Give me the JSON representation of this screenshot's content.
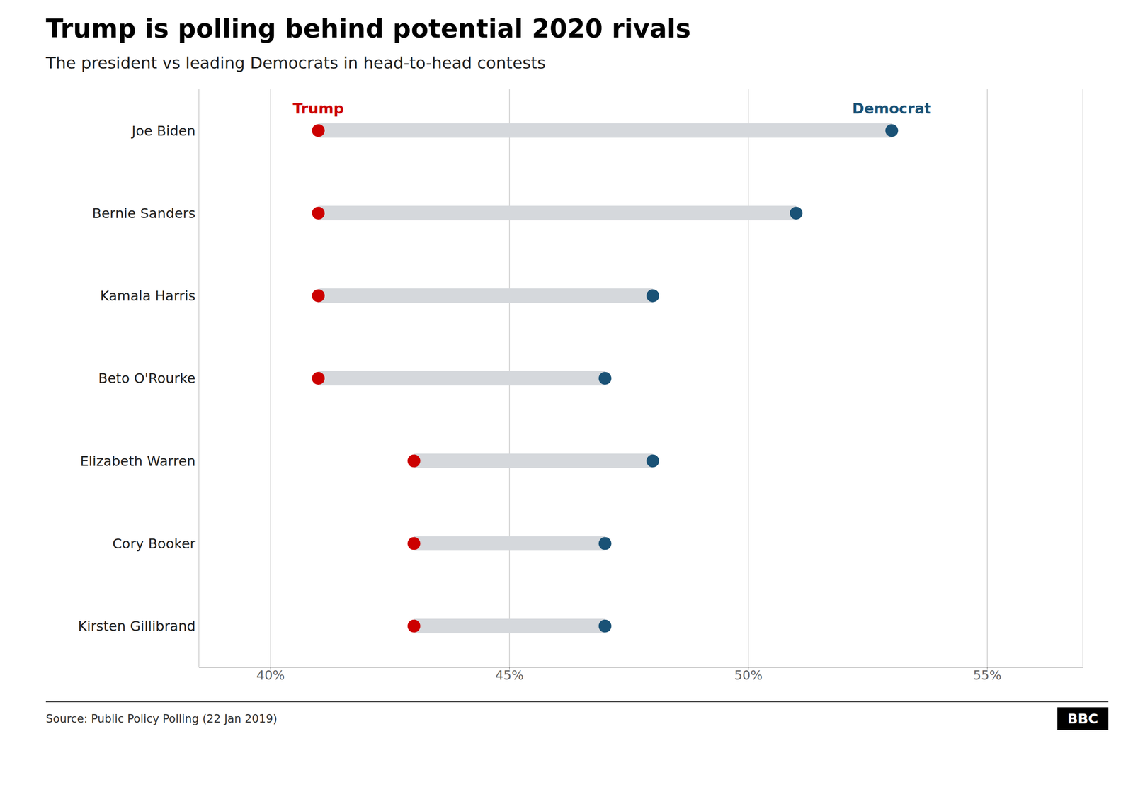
{
  "chart_data": {
    "type": "dumbbell",
    "title": "Trump is polling behind potential 2020 rivals",
    "subtitle": "The president vs leading Democrats in head-to-head contests",
    "orientation": "horizontal",
    "categories": [
      "Joe Biden",
      "Bernie Sanders",
      "Kamala Harris",
      "Beto O'Rourke",
      "Elizabeth Warren",
      "Cory Booker",
      "Kirsten Gillibrand"
    ],
    "series": [
      {
        "name": "Trump",
        "color": "#cc0000",
        "values": [
          41,
          41,
          41,
          41,
          43,
          43,
          43
        ]
      },
      {
        "name": "Democrat",
        "color": "#1a5276",
        "values": [
          53,
          51,
          48,
          47,
          48,
          47,
          47
        ]
      }
    ],
    "color": "#d5d8dc",
    "xlim": [
      38.5,
      57
    ],
    "xticks": [
      {
        "value": 40,
        "label": "40%"
      },
      {
        "value": 45,
        "label": "45%"
      },
      {
        "value": 50,
        "label": "50%"
      },
      {
        "value": 55,
        "label": "55%"
      }
    ],
    "grid": true,
    "annotations": [
      "Source: Public Policy Polling (22 Jan 2019)",
      "BBC"
    ]
  }
}
